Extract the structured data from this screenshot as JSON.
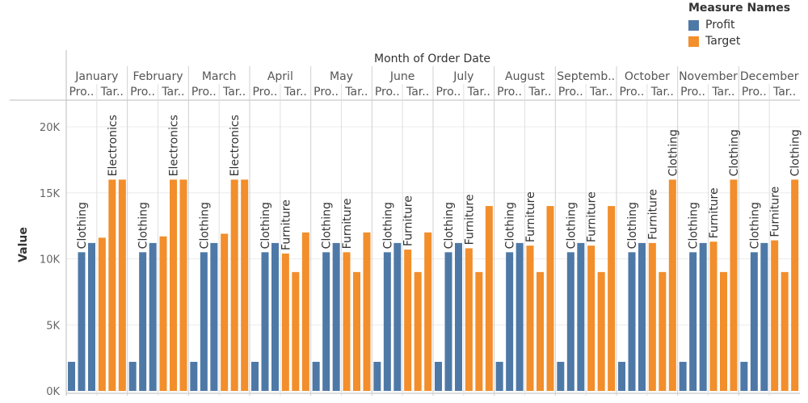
{
  "legend": {
    "title": "Measure Names",
    "items": [
      {
        "label": "Profit",
        "color": "#4e79a7"
      },
      {
        "label": "Target",
        "color": "#f28e2b"
      }
    ]
  },
  "chart_data": {
    "type": "bar",
    "title": "",
    "column_header": "Month of Order Date",
    "ylabel": "Value",
    "ylim": [
      0,
      22000
    ],
    "yticks": [
      {
        "value": 0,
        "label": "0K"
      },
      {
        "value": 5000,
        "label": "5K"
      },
      {
        "value": 10000,
        "label": "10K"
      },
      {
        "value": 15000,
        "label": "15K"
      },
      {
        "value": 20000,
        "label": "20K"
      }
    ],
    "grid": true,
    "legend_position": "top-right",
    "colors": {
      "Profit": "#4e79a7",
      "Target": "#f28e2b"
    },
    "months": [
      {
        "label": "January",
        "subs": [
          "Pro..",
          "Tar.."
        ],
        "profit": [
          2200,
          10500,
          11200
        ],
        "target": [
          11600,
          16000,
          16000
        ],
        "profit_label": "Clothing",
        "target_label": "Electronics"
      },
      {
        "label": "February",
        "subs": [
          "Pro..",
          "Tar.."
        ],
        "profit": [
          2200,
          10500,
          11200
        ],
        "target": [
          11700,
          16000,
          16000
        ],
        "profit_label": "Clothing",
        "target_label": "Electronics"
      },
      {
        "label": "March",
        "subs": [
          "Pro..",
          "Tar.."
        ],
        "profit": [
          2200,
          10500,
          11200
        ],
        "target": [
          11900,
          16000,
          16000
        ],
        "profit_label": "Clothing",
        "target_label": "Electronics"
      },
      {
        "label": "April",
        "subs": [
          "Pro..",
          "Tar.."
        ],
        "profit": [
          2200,
          10500,
          11200
        ],
        "target": [
          10400,
          9000,
          12000
        ],
        "profit_label": "Clothing",
        "target_label": "Furniture"
      },
      {
        "label": "May",
        "subs": [
          "Pro..",
          "Tar.."
        ],
        "profit": [
          2200,
          10500,
          11200
        ],
        "target": [
          10500,
          9000,
          12000
        ],
        "profit_label": "Clothing",
        "target_label": "Furniture"
      },
      {
        "label": "June",
        "subs": [
          "Pro..",
          "Tar.."
        ],
        "profit": [
          2200,
          10500,
          11200
        ],
        "target": [
          10700,
          9000,
          12000
        ],
        "profit_label": "Clothing",
        "target_label": "Furniture"
      },
      {
        "label": "July",
        "subs": [
          "Pro..",
          "Tar.."
        ],
        "profit": [
          2200,
          10500,
          11200
        ],
        "target": [
          10800,
          9000,
          14000
        ],
        "profit_label": "Clothing",
        "target_label": "Furniture"
      },
      {
        "label": "August",
        "subs": [
          "Pro..",
          "Tar.."
        ],
        "profit": [
          2200,
          10500,
          11200
        ],
        "target": [
          11000,
          9000,
          14000
        ],
        "profit_label": "Clothing",
        "target_label": "Furniture"
      },
      {
        "label": "Septemb..",
        "subs": [
          "Pro..",
          "Tar.."
        ],
        "profit": [
          2200,
          10500,
          11200
        ],
        "target": [
          11000,
          9000,
          14000
        ],
        "profit_label": "Clothing",
        "target_label": "Furniture"
      },
      {
        "label": "October",
        "subs": [
          "Pro..",
          "Tar.."
        ],
        "profit": [
          2200,
          10500,
          11200
        ],
        "target": [
          11200,
          9000,
          16000
        ],
        "profit_label": "Clothing",
        "target_label": "Furniture",
        "target_top_label": "Clothing"
      },
      {
        "label": "November",
        "subs": [
          "Pro..",
          "Tar.."
        ],
        "profit": [
          2200,
          10500,
          11200
        ],
        "target": [
          11300,
          9000,
          16000
        ],
        "profit_label": "Clothing",
        "target_label": "Furniture",
        "target_top_label": "Clothing"
      },
      {
        "label": "December",
        "subs": [
          "Pro..",
          "Tar.."
        ],
        "profit": [
          2200,
          10500,
          11200
        ],
        "target": [
          11400,
          9000,
          16000
        ],
        "profit_label": "Clothing",
        "target_label": "Furniture",
        "target_top_label": "Clothing"
      }
    ]
  }
}
